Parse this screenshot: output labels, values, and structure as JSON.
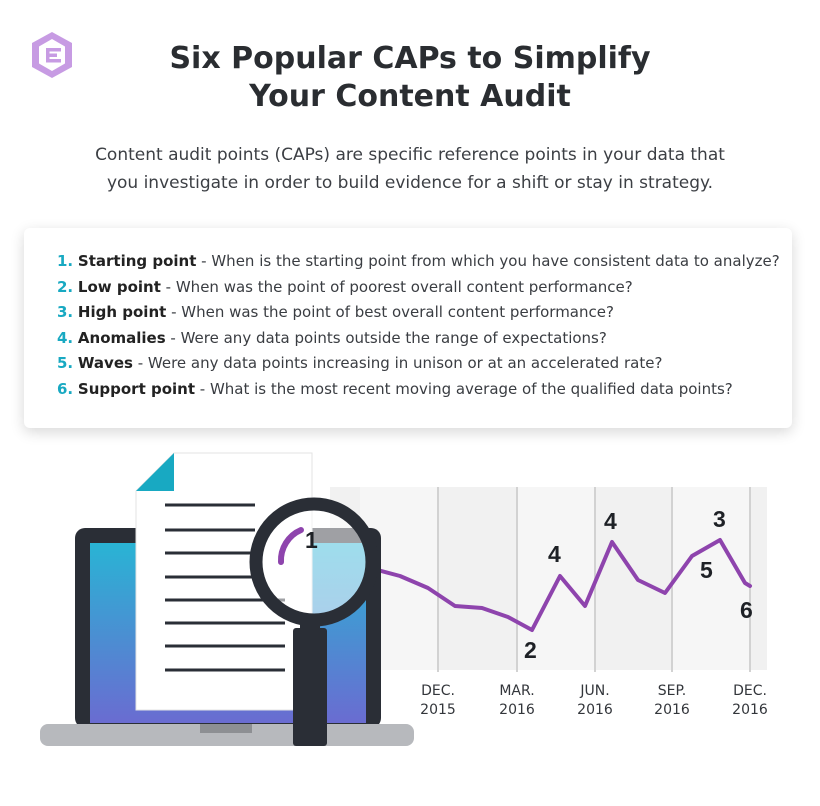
{
  "header": {
    "title_line1": "Six Popular CAPs to Simplify",
    "title_line2": "Your Content Audit",
    "intro_line1": "Content audit points (CAPs) are specific reference points in your data that",
    "intro_line2": "you investigate in order to build evidence for a shift or stay in strategy."
  },
  "caps": [
    {
      "num": "1.",
      "term": "Starting point",
      "desc": " - When is the starting point from which you have consistent data to analyze?"
    },
    {
      "num": "2.",
      "term": "Low point",
      "desc": " - When was the point of poorest overall content performance?"
    },
    {
      "num": "3.",
      "term": "High point",
      "desc": " - When was the point of best overall content performance?"
    },
    {
      "num": "4.",
      "term": "Anomalies",
      "desc": " - Were any data points outside the range of expectations?"
    },
    {
      "num": "5.",
      "term": "Waves",
      "desc": " - Were any data points increasing in unison or at an accelerated rate?"
    },
    {
      "num": "6.",
      "term": "Support point",
      "desc": " - What is the most recent moving average of the qualified data points?"
    }
  ],
  "timeline": {
    "labels": [
      {
        "month": "DEC.",
        "year": "2015"
      },
      {
        "month": "MAR.",
        "year": "2016"
      },
      {
        "month": "JUN.",
        "year": "2016"
      },
      {
        "month": "SEP.",
        "year": "2016"
      },
      {
        "month": "DEC.",
        "year": "2016"
      }
    ],
    "point_markers": [
      "1",
      "2",
      "4",
      "4",
      "5",
      "3",
      "6"
    ]
  },
  "colors": {
    "accent_teal": "#18a9c2",
    "line_purple": "#8e44ad",
    "logo_purple": "#b07ad4"
  }
}
